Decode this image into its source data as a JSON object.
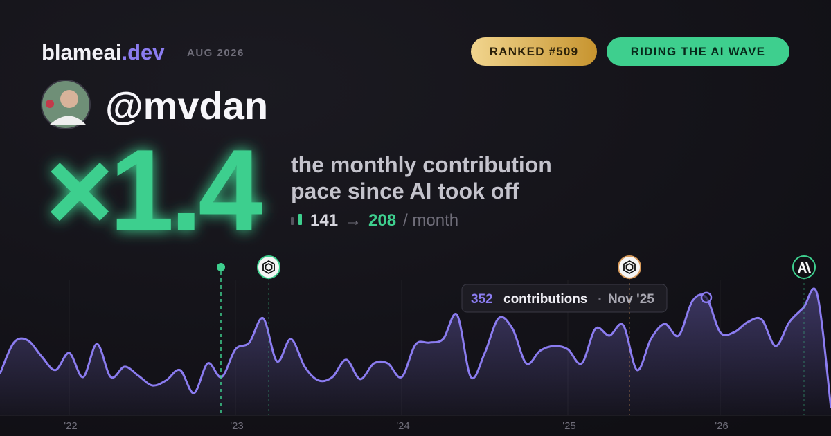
{
  "header": {
    "brand": "blameai",
    "brand_tld": ".dev",
    "period": "AUG 2026",
    "badges": [
      "RANKED #509",
      "RIDING THE AI WAVE"
    ]
  },
  "profile": {
    "handle": "@mvdan"
  },
  "stat": {
    "multiplier": "×1.4",
    "caption": [
      "the monthly contribution",
      "pace since AI took off"
    ],
    "from": 141,
    "arrow": "→",
    "to": 208,
    "unit": "/ month"
  },
  "chart_data": {
    "type": "line",
    "color": "#8b7cf0",
    "categories": [
      null,
      null,
      null,
      null,
      null,
      "'22",
      null,
      null,
      null,
      null,
      null,
      null,
      null,
      null,
      null,
      null,
      null,
      "'23",
      null,
      null,
      null,
      null,
      null,
      null,
      null,
      null,
      null,
      null,
      null,
      "'24",
      null,
      null,
      null,
      null,
      null,
      null,
      null,
      null,
      null,
      null,
      null,
      "'25",
      null,
      null,
      null,
      null,
      null,
      null,
      null,
      null,
      null,
      "Nov '25",
      "'26",
      null,
      null,
      null,
      null,
      null,
      null,
      null,
      null
    ],
    "values": [
      124,
      217,
      224,
      176,
      135,
      186,
      114,
      213,
      114,
      145,
      118,
      89,
      104,
      135,
      66,
      155,
      114,
      197,
      217,
      290,
      161,
      228,
      145,
      104,
      114,
      166,
      108,
      155,
      155,
      114,
      211,
      217,
      228,
      300,
      114,
      186,
      290,
      259,
      155,
      193,
      207,
      197,
      155,
      259,
      238,
      269,
      135,
      228,
      273,
      238,
      342,
      352,
      248,
      248,
      279,
      286,
      207,
      279,
      321,
      362,
      21
    ],
    "ylim": [
      0,
      420
    ],
    "tooltip": {
      "label": "contributions"
    }
  }
}
